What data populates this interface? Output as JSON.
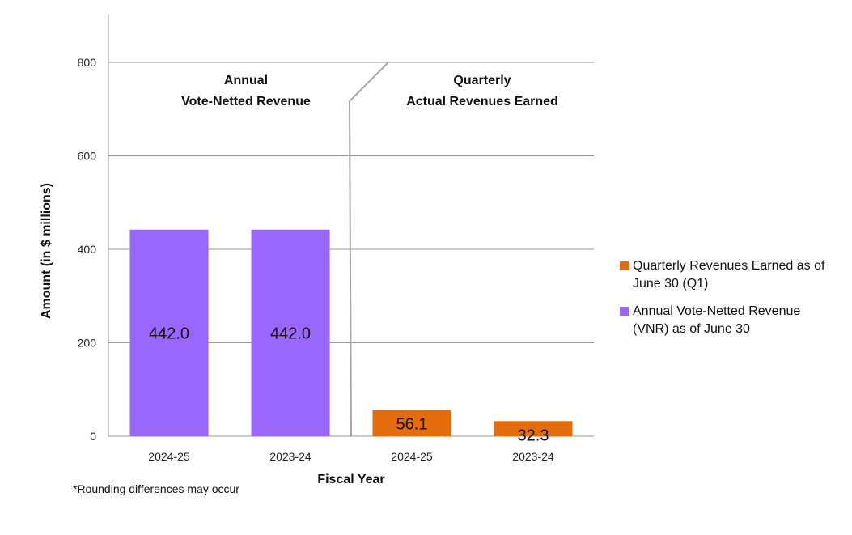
{
  "chart_data": {
    "type": "bar",
    "categories": [
      "2024-25",
      "2023-24",
      "2024-25",
      "2023-24"
    ],
    "values": [
      442.0,
      442.0,
      56.1,
      32.3
    ],
    "value_labels": [
      "442.0",
      "442.0",
      "56.1",
      "32.3"
    ],
    "bar_series": [
      1,
      1,
      0,
      0
    ],
    "series": [
      {
        "name": "Quarterly Revenues Earned as of June 30 (Q1)",
        "color": "#e46c0a"
      },
      {
        "name": "Annual Vote-Netted Revenue (VNR) as of June 30",
        "color": "#9966ff"
      }
    ],
    "y_ticks": [
      0,
      200,
      400,
      600,
      800
    ],
    "ylim": [
      0,
      800
    ],
    "xlabel": "Fiscal Year",
    "ylabel": "Amount (in $ millions)",
    "annotations": [
      {
        "lines": [
          "Annual",
          "Vote-Netted Revenue"
        ]
      },
      {
        "lines": [
          "Quarterly",
          "Actual Revenues Earned"
        ]
      }
    ],
    "grid": true,
    "legend_position": "right"
  },
  "footnote": "*Rounding differences may occur"
}
